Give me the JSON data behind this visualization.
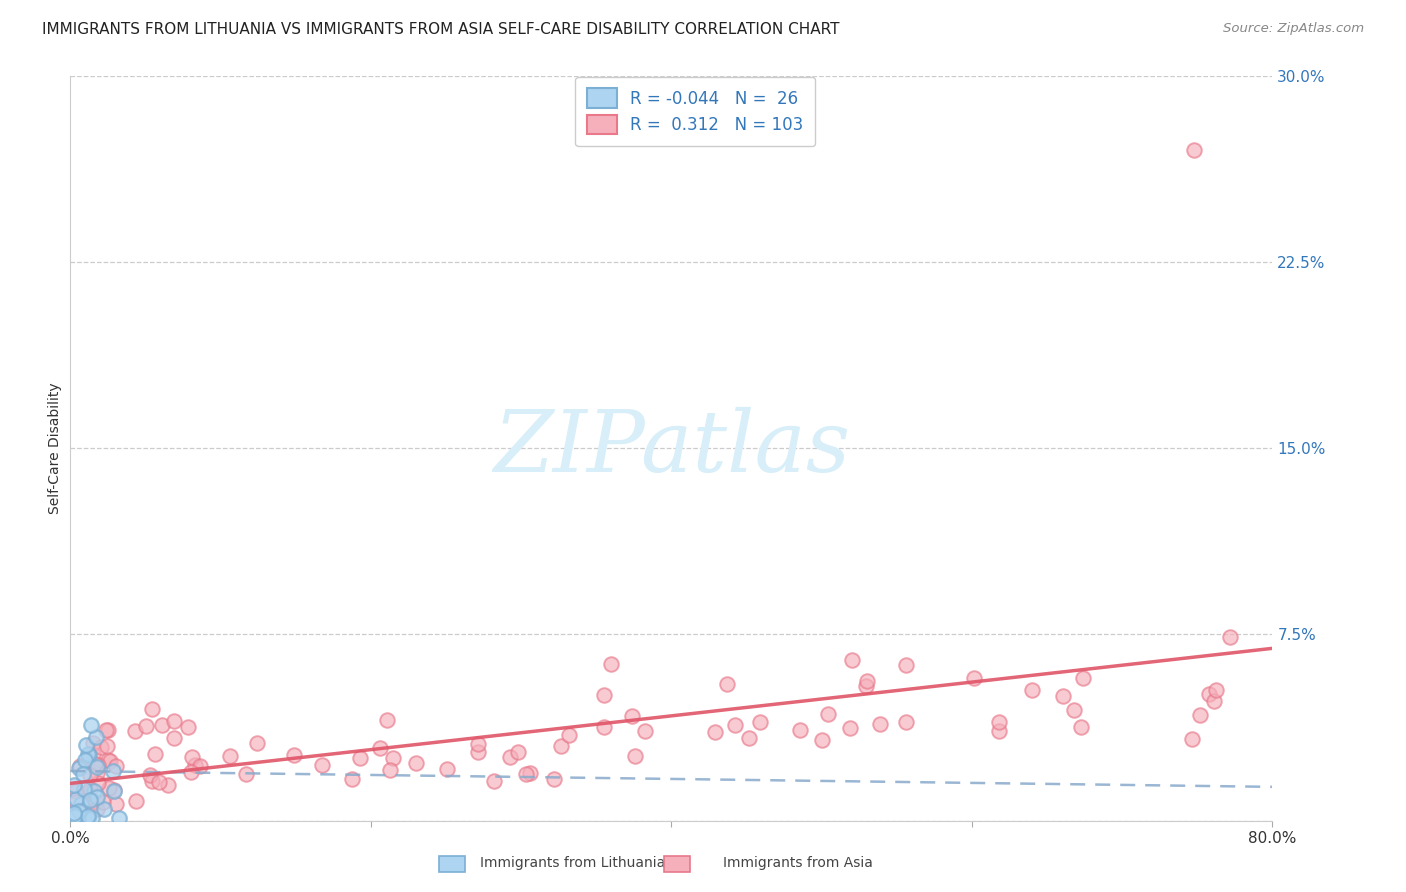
{
  "title": "IMMIGRANTS FROM LITHUANIA VS IMMIGRANTS FROM ASIA SELF-CARE DISABILITY CORRELATION CHART",
  "source": "Source: ZipAtlas.com",
  "ylabel": "Self-Care Disability",
  "xlim": [
    0.0,
    0.8
  ],
  "ylim": [
    0.0,
    0.3
  ],
  "ytick_vals": [
    0.0,
    0.075,
    0.15,
    0.225,
    0.3
  ],
  "ytick_labels": [
    "",
    "7.5%",
    "15.0%",
    "22.5%",
    "30.0%"
  ],
  "xtick_vals": [
    0.0,
    0.2,
    0.4,
    0.6,
    0.8
  ],
  "xtick_labels": [
    "0.0%",
    "",
    "",
    "",
    "80.0%"
  ],
  "legend_lith_R": -0.044,
  "legend_lith_N": 26,
  "legend_asia_R": 0.312,
  "legend_asia_N": 103,
  "lith_edge_color": "#7bafd4",
  "lith_face_color": "#add4f0",
  "asia_edge_color": "#e8788a",
  "asia_face_color": "#f5b0bc",
  "lith_line_color": "#88aacc",
  "asia_line_color": "#e05568",
  "tick_color": "#3377bb",
  "grid_color": "#cccccc",
  "watermark_color": "#d8eef8",
  "background": "#ffffff",
  "title_fontsize": 11,
  "tick_fontsize": 11,
  "legend_fontsize": 12
}
